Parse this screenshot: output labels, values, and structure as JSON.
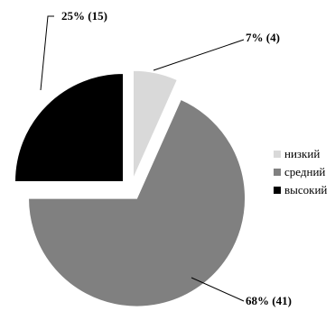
{
  "chart_data": {
    "type": "pie",
    "categories": [
      "низкий",
      "средний",
      "высокий"
    ],
    "values": [
      4,
      41,
      15
    ],
    "percents": [
      7,
      68,
      25
    ],
    "data_labels": [
      "7% (4)",
      "68% (41)",
      "25% (15)"
    ],
    "colors": [
      "#d9d9d9",
      "#808080",
      "#000000"
    ],
    "exploded": true,
    "legend_position": "right",
    "title": ""
  }
}
